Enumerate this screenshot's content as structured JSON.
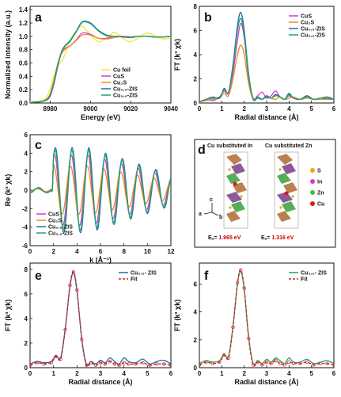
{
  "chart_data": [
    {
      "panel": "a",
      "type": "line",
      "xlabel": "Energy (eV)",
      "ylabel": "Normalized intensity (a.u.)",
      "xlim": [
        8970,
        9040
      ],
      "ylim": [
        0,
        1.45
      ],
      "xticks": [
        "8980",
        "9000",
        "9020",
        "9040"
      ],
      "yticks": [
        "0.0",
        "0.2",
        "0.4",
        "0.6",
        "0.8",
        "1.0",
        "1.2",
        "1.4"
      ],
      "xtick_vals": [
        8980,
        9000,
        9020,
        9040
      ],
      "ytick_vals": [
        0,
        0.2,
        0.4,
        0.6,
        0.8,
        1.0,
        1.2,
        1.4
      ],
      "legend": "right",
      "series": [
        {
          "name": "Cu foil",
          "color": "#f5e633",
          "x": [
            8970,
            8975,
            8978,
            8980,
            8982,
            8984,
            8986,
            8988,
            8990,
            8993,
            8996,
            9000,
            9004,
            9008,
            9012,
            9016,
            9020,
            9024,
            9028,
            9032,
            9036,
            9040
          ],
          "y": [
            0.02,
            0.03,
            0.08,
            0.22,
            0.42,
            0.56,
            0.64,
            0.78,
            0.95,
            1.08,
            1.15,
            1.02,
            0.92,
            0.98,
            1.06,
            0.97,
            0.92,
            0.98,
            1.05,
            1.01,
            0.96,
            0.98
          ]
        },
        {
          "name": "CuS",
          "color": "#d838d8",
          "x": [
            8970,
            8975,
            8978,
            8980,
            8982,
            8984,
            8986,
            8988,
            8990,
            8993,
            8996,
            9000,
            9004,
            9008,
            9012,
            9016,
            9020,
            9024,
            9028,
            9032,
            9036,
            9040
          ],
          "y": [
            0.01,
            0.02,
            0.04,
            0.1,
            0.3,
            0.58,
            0.78,
            0.83,
            0.86,
            0.95,
            1.05,
            1.03,
            0.97,
            0.97,
            1.0,
            0.99,
            0.98,
            1.0,
            1.0,
            0.99,
            0.99,
            1.0
          ]
        },
        {
          "name": "Cu2S",
          "display": "Cu₂S",
          "color": "#f08a1a",
          "x": [
            8970,
            8975,
            8978,
            8980,
            8982,
            8984,
            8986,
            8988,
            8990,
            8993,
            8996,
            9000,
            9004,
            9008,
            9012,
            9016,
            9020,
            9024,
            9028,
            9032,
            9036,
            9040
          ],
          "y": [
            0.01,
            0.02,
            0.05,
            0.14,
            0.36,
            0.62,
            0.76,
            0.82,
            0.86,
            0.94,
            1.02,
            1.02,
            0.97,
            0.96,
            0.98,
            1.0,
            0.99,
            1.0,
            1.0,
            0.99,
            0.99,
            1.0
          ]
        },
        {
          "name": "Cu0.5-ZIS",
          "display": "Cu₀.₅-ZIS",
          "color": "#1f6fa8",
          "x": [
            8970,
            8975,
            8978,
            8980,
            8982,
            8984,
            8986,
            8988,
            8990,
            8993,
            8996,
            9000,
            9004,
            9008,
            9012,
            9016,
            9020,
            9024,
            9028,
            9032,
            9036,
            9040
          ],
          "y": [
            0.01,
            0.02,
            0.05,
            0.12,
            0.33,
            0.6,
            0.8,
            0.88,
            0.94,
            1.08,
            1.22,
            1.2,
            1.09,
            1.02,
            1.0,
            1.0,
            0.99,
            1.0,
            1.0,
            0.99,
            0.99,
            1.0
          ]
        },
        {
          "name": "Cu3.6-ZIS",
          "display": "Cu₃.₆-ZIS",
          "color": "#1fa36b",
          "x": [
            8970,
            8975,
            8978,
            8980,
            8982,
            8984,
            8986,
            8988,
            8990,
            8993,
            8996,
            9000,
            9004,
            9008,
            9012,
            9016,
            9020,
            9024,
            9028,
            9032,
            9036,
            9040
          ],
          "y": [
            0.01,
            0.02,
            0.05,
            0.12,
            0.32,
            0.59,
            0.79,
            0.87,
            0.93,
            1.07,
            1.21,
            1.19,
            1.08,
            1.01,
            1.0,
            1.0,
            0.99,
            1.0,
            1.0,
            0.99,
            0.99,
            1.0
          ]
        }
      ]
    },
    {
      "panel": "b",
      "type": "line",
      "xlabel": "Radial distance (Å)",
      "ylabel": "FT (k³ χk)",
      "xlim": [
        0,
        6
      ],
      "ylim": [
        0,
        8
      ],
      "xticks": [
        "0",
        "1",
        "2",
        "3",
        "4",
        "5",
        "6"
      ],
      "yticks": [
        "0",
        "2",
        "4",
        "6",
        "8"
      ],
      "xtick_vals": [
        0,
        1,
        2,
        3,
        4,
        5,
        6
      ],
      "ytick_vals": [
        0,
        2,
        4,
        6,
        8
      ],
      "legend": "top-right",
      "series": [
        {
          "name": "CuS",
          "color": "#d838d8",
          "x": [
            0,
            0.3,
            0.6,
            0.9,
            1.1,
            1.3,
            1.5,
            1.7,
            1.85,
            2.0,
            2.2,
            2.4,
            2.6,
            2.8,
            3.0,
            3.2,
            3.4,
            3.6,
            3.8,
            4.0,
            4.2,
            4.5,
            4.8,
            5.1,
            5.4,
            5.7,
            6.0
          ],
          "y": [
            0.1,
            0.3,
            0.2,
            0.5,
            1.0,
            0.8,
            2.5,
            5.2,
            6.6,
            5.4,
            2.0,
            0.4,
            0.6,
            0.9,
            0.4,
            0.6,
            1.0,
            0.5,
            0.3,
            0.6,
            0.4,
            0.3,
            0.5,
            0.3,
            0.4,
            0.3,
            0.3
          ]
        },
        {
          "name": "Cu2S",
          "display": "Cu₂S",
          "color": "#f08a1a",
          "x": [
            0,
            0.3,
            0.6,
            0.9,
            1.1,
            1.3,
            1.5,
            1.7,
            1.85,
            2.0,
            2.2,
            2.4,
            2.6,
            2.8,
            3.0,
            3.2,
            3.4,
            3.6,
            3.8,
            4.0,
            4.2,
            4.5,
            4.8,
            5.1,
            5.4,
            5.7,
            6.0
          ],
          "y": [
            0.1,
            0.2,
            0.3,
            0.4,
            0.8,
            0.6,
            2.0,
            4.0,
            4.8,
            4.0,
            1.6,
            0.3,
            0.5,
            0.3,
            0.5,
            0.4,
            0.3,
            0.5,
            0.3,
            0.4,
            0.5,
            0.3,
            0.4,
            0.3,
            0.3,
            0.3,
            0.3
          ]
        },
        {
          "name": "Cu0.5-ZIS",
          "display": "Cu₀.₅-ZIS",
          "color": "#1f6fa8",
          "x": [
            0,
            0.3,
            0.6,
            0.9,
            1.1,
            1.3,
            1.5,
            1.7,
            1.85,
            2.0,
            2.2,
            2.4,
            2.6,
            2.8,
            3.0,
            3.2,
            3.4,
            3.6,
            3.8,
            4.0,
            4.2,
            4.5,
            4.8,
            5.1,
            5.4,
            5.7,
            6.0
          ],
          "y": [
            0.1,
            0.3,
            0.5,
            0.4,
            1.2,
            0.9,
            3.2,
            6.4,
            7.5,
            6.0,
            2.4,
            0.3,
            0.5,
            0.3,
            0.6,
            0.4,
            0.7,
            0.5,
            0.3,
            0.8,
            0.4,
            0.3,
            0.6,
            0.3,
            0.4,
            0.5,
            0.3
          ]
        },
        {
          "name": "Cu3.6-ZIS",
          "display": "Cu₃.₆-ZIS",
          "color": "#1fa36b",
          "x": [
            0,
            0.3,
            0.6,
            0.9,
            1.1,
            1.3,
            1.5,
            1.7,
            1.85,
            2.0,
            2.2,
            2.4,
            2.6,
            2.8,
            3.0,
            3.2,
            3.4,
            3.6,
            3.8,
            4.0,
            4.2,
            4.5,
            4.8,
            5.1,
            5.4,
            5.7,
            6.0
          ],
          "y": [
            0.1,
            0.3,
            0.4,
            0.5,
            1.1,
            0.9,
            3.0,
            6.0,
            7.0,
            5.6,
            2.2,
            0.3,
            0.4,
            0.3,
            0.5,
            0.4,
            0.6,
            0.5,
            0.3,
            0.7,
            0.4,
            0.3,
            0.5,
            0.3,
            0.4,
            0.4,
            0.3
          ]
        }
      ]
    },
    {
      "panel": "c",
      "type": "line",
      "xlabel": "k (Å⁻¹)",
      "ylabel": "Re (k³ χk)",
      "xlim": [
        0,
        12
      ],
      "ylim": [
        -6,
        6
      ],
      "xticks": [
        "0",
        "2",
        "4",
        "6",
        "8",
        "10",
        "12"
      ],
      "yticks": [
        "-6",
        "-4",
        "-2",
        "0",
        "2",
        "4",
        "6"
      ],
      "xtick_vals": [
        0,
        2,
        4,
        6,
        8,
        10,
        12
      ],
      "ytick_vals": [
        -6,
        -4,
        -2,
        0,
        2,
        4,
        6
      ],
      "legend": "bottom-left",
      "series": [
        {
          "name": "CuS",
          "color": "#d838d8",
          "amp": 3.8,
          "phase": 0.3
        },
        {
          "name": "Cu2S",
          "display": "Cu₂S",
          "color": "#f08a1a",
          "amp": 2.6,
          "phase": 0.6
        },
        {
          "name": "Cu0.5-ZIS",
          "display": "Cu₀.₅-ZIS",
          "color": "#1f6fa8",
          "amp": 4.6,
          "phase": 0.0
        },
        {
          "name": "Cu3.6-ZIS",
          "display": "Cu₃.₆-ZIS",
          "color": "#1fa36b",
          "amp": 4.3,
          "phase": 0.1
        }
      ]
    },
    {
      "panel": "e",
      "type": "line",
      "xlabel": "Radial distance (Å)",
      "ylabel": "FT (k³ χk)",
      "xlim": [
        0,
        6
      ],
      "ylim": [
        0,
        8.5
      ],
      "xticks": [
        "0",
        "1",
        "2",
        "3",
        "4",
        "5",
        "6"
      ],
      "yticks": [
        "0",
        "2",
        "4",
        "6",
        "8"
      ],
      "xtick_vals": [
        0,
        1,
        2,
        3,
        4,
        5,
        6
      ],
      "ytick_vals": [
        0,
        2,
        4,
        6,
        8
      ],
      "legend": "top-right",
      "series": [
        {
          "name": "Cu0.5- ZIS",
          "display": "Cu₀.₅- ZIS",
          "color": "#1f6fa8",
          "x": [
            0,
            0.3,
            0.6,
            0.9,
            1.1,
            1.3,
            1.5,
            1.7,
            1.85,
            2.0,
            2.2,
            2.4,
            2.6,
            2.8,
            3.0,
            3.2,
            3.4,
            3.6,
            3.8,
            4.0,
            4.2,
            4.5,
            4.8,
            5.1,
            5.4,
            5.7,
            6.0
          ],
          "y": [
            0.3,
            0.5,
            0.4,
            0.5,
            1.0,
            0.8,
            3.2,
            6.6,
            7.7,
            6.2,
            2.4,
            0.3,
            0.5,
            0.3,
            0.6,
            0.4,
            0.8,
            0.5,
            0.3,
            0.8,
            0.5,
            0.4,
            0.7,
            0.3,
            0.5,
            0.6,
            0.3
          ]
        },
        {
          "name": "Fit",
          "color": "#d42020",
          "dash": true,
          "x": [
            0,
            0.3,
            0.6,
            0.9,
            1.1,
            1.3,
            1.5,
            1.7,
            1.85,
            2.0,
            2.2,
            2.4,
            2.6,
            2.8,
            3.0,
            3.2,
            3.4,
            3.6,
            3.8,
            4.0,
            4.2,
            4.5,
            4.8,
            5.1,
            5.4,
            5.7,
            6.0
          ],
          "y": [
            0.2,
            0.4,
            0.3,
            0.4,
            0.9,
            0.7,
            3.1,
            6.7,
            7.8,
            6.3,
            2.3,
            0.2,
            0.4,
            0.2,
            0.4,
            0.3,
            0.5,
            0.3,
            0.2,
            0.4,
            0.3,
            0.3,
            0.4,
            0.2,
            0.3,
            0.3,
            0.2
          ]
        }
      ]
    },
    {
      "panel": "f",
      "type": "line",
      "xlabel": "Radial distance (Å)",
      "ylabel": "FT (k³ χk)",
      "xlim": [
        0,
        6
      ],
      "ylim": [
        0,
        7.5
      ],
      "xticks": [
        "0",
        "1",
        "2",
        "3",
        "4",
        "5",
        "6"
      ],
      "yticks": [
        "0",
        "2",
        "4",
        "6"
      ],
      "xtick_vals": [
        0,
        1,
        2,
        3,
        4,
        5,
        6
      ],
      "ytick_vals": [
        0,
        2,
        4,
        6
      ],
      "legend": "top-right",
      "series": [
        {
          "name": "Cu3.6- ZIS",
          "display": "Cu₃.₆- ZIS",
          "color": "#1fa36b",
          "x": [
            0,
            0.3,
            0.6,
            0.9,
            1.1,
            1.3,
            1.5,
            1.7,
            1.85,
            2.0,
            2.2,
            2.4,
            2.6,
            2.8,
            3.0,
            3.2,
            3.4,
            3.6,
            3.8,
            4.0,
            4.2,
            4.5,
            4.8,
            5.1,
            5.4,
            5.7,
            6.0
          ],
          "y": [
            0.3,
            0.5,
            0.4,
            0.5,
            1.0,
            0.8,
            3.0,
            6.0,
            6.9,
            5.6,
            2.2,
            0.3,
            0.5,
            0.3,
            0.6,
            0.4,
            0.7,
            0.5,
            0.3,
            0.7,
            0.4,
            0.4,
            0.6,
            0.3,
            0.4,
            0.5,
            0.3
          ]
        },
        {
          "name": "Fit",
          "color": "#d42020",
          "dash": true,
          "x": [
            0,
            0.3,
            0.6,
            0.9,
            1.1,
            1.3,
            1.5,
            1.7,
            1.85,
            2.0,
            2.2,
            2.4,
            2.6,
            2.8,
            3.0,
            3.2,
            3.4,
            3.6,
            3.8,
            4.0,
            4.2,
            4.5,
            4.8,
            5.1,
            5.4,
            5.7,
            6.0
          ],
          "y": [
            0.2,
            0.4,
            0.3,
            0.4,
            0.9,
            0.7,
            2.9,
            6.1,
            7.0,
            5.7,
            2.1,
            0.2,
            0.4,
            0.2,
            0.4,
            0.3,
            0.5,
            0.3,
            0.2,
            0.4,
            0.3,
            0.3,
            0.4,
            0.2,
            0.3,
            0.3,
            0.2
          ]
        }
      ]
    }
  ],
  "panel_d": {
    "label": "d",
    "title_left": "Cu substituted In",
    "title_right": "Cu substituted Zn",
    "energy_left": "Eₐ= 1.965 eV",
    "energy_right": "Eₐ= 1.316 eV",
    "axes": [
      "c",
      "a",
      "b"
    ],
    "legend": [
      {
        "label": "S",
        "color": "#f0a020"
      },
      {
        "label": "In",
        "color": "#d838d8"
      },
      {
        "label": "Zn",
        "color": "#40c040"
      },
      {
        "label": "Cu",
        "color": "#d02020"
      }
    ]
  },
  "panel_labels": {
    "a": "a",
    "b": "b",
    "c": "c",
    "e": "e",
    "f": "f"
  }
}
